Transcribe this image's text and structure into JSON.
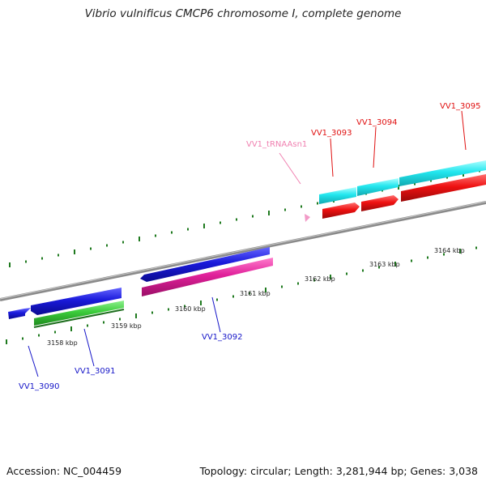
{
  "title": "Vibrio vulnificus CMCP6 chromosome I, complete genome",
  "footer": {
    "accession": "Accession: NC_004459",
    "summary": "Topology: circular; Length: 3,281,944 bp; Genes: 3,038"
  },
  "scale_labels": [
    "3158 kbp",
    "3159 kbp",
    "3160 kbp",
    "3161 kbp",
    "3162 kbp",
    "3163 kbp",
    "3164 kbp"
  ],
  "gene_labels": {
    "vv1_3090": "VV1_3090",
    "vv1_3091": "VV1_3091",
    "vv1_3092": "VV1_3092",
    "vv1_trnaasn1": "VV1_tRNAAsn1",
    "vv1_3093": "VV1_3093",
    "vv1_3094": "VV1_3094",
    "vv1_3095": "VV1_3095"
  },
  "colors": {
    "backbone": "#8a8a8a",
    "cds_forward": "#1a1adb",
    "rna_track": "#3ccc3c",
    "magenta_track": "#e0209a",
    "cyan_track": "#22e6ee",
    "red_track": "#ee1111",
    "trna": "#f29ac7",
    "tick": "#1f7a1f",
    "label_blue": "#1515c8",
    "label_red": "#e01010",
    "label_pink": "#f080b0"
  }
}
